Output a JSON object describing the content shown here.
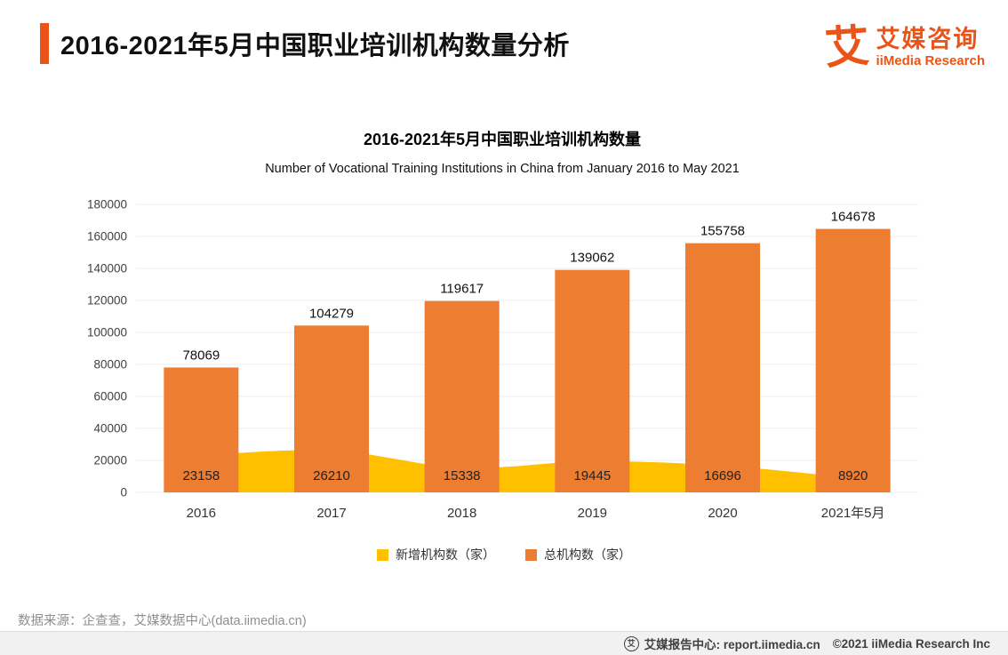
{
  "header": {
    "title": "2016-2021年5月中国职业培训机构数量分析",
    "logo": {
      "glyph": "艾",
      "name_cn": "艾媒咨询",
      "name_en": "iiMedia Research"
    }
  },
  "chart": {
    "title": "2016-2021年5月中国职业培训机构数量",
    "subtitle": "Number of Vocational Training Institutions in China from January 2016 to May 2021"
  },
  "chart_data": {
    "type": "bar",
    "categories": [
      "2016",
      "2017",
      "2018",
      "2019",
      "2020",
      "2021年5月"
    ],
    "series": [
      {
        "name": "新增机构数（家）",
        "type": "area",
        "color": "#FFC000",
        "values": [
          23158,
          26210,
          15338,
          19445,
          16696,
          8920
        ]
      },
      {
        "name": "总机构数（家）",
        "type": "bar",
        "color": "#ED7D31",
        "values": [
          78069,
          104279,
          119617,
          139062,
          155758,
          164678
        ]
      }
    ],
    "ylim": [
      0,
      180000
    ],
    "ytick_step": 20000,
    "grid": true,
    "legend_position": "bottom"
  },
  "footer": {
    "source": "数据来源：企查查，艾媒数据中心(data.iimedia.cn)",
    "icon_glyph": "艾",
    "report_center": "艾媒报告中心:  report.iimedia.cn",
    "copyright": "©2021   iiMedia Research  Inc"
  },
  "colors": {
    "accent": "#EB5419",
    "bar": "#ED7D31",
    "area": "#FFC000"
  }
}
